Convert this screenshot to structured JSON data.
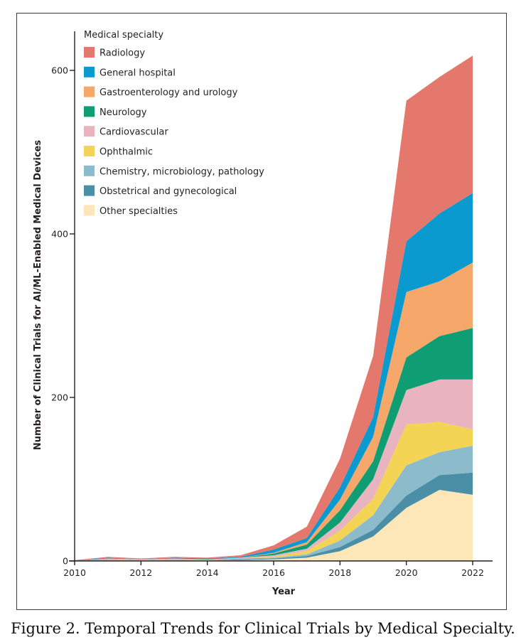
{
  "chart_data": {
    "type": "area",
    "stacked": true,
    "x": [
      2010,
      2011,
      2012,
      2013,
      2014,
      2015,
      2016,
      2017,
      2018,
      2019,
      2020,
      2021,
      2022
    ],
    "series": [
      {
        "name": "Other specialties",
        "color": "#fde6b8",
        "values": [
          0,
          1,
          1,
          1,
          1,
          1,
          2,
          4,
          12,
          30,
          65,
          87,
          81
        ]
      },
      {
        "name": "Obstetrical and gynecological",
        "color": "#4a8fa6",
        "values": [
          0,
          0,
          0,
          0,
          0,
          1,
          1,
          2,
          5,
          8,
          15,
          18,
          27
        ]
      },
      {
        "name": "Chemistry, microbiology, pathology",
        "color": "#8cbccc",
        "values": [
          0,
          1,
          0,
          1,
          0,
          1,
          1,
          2,
          8,
          18,
          37,
          28,
          33
        ]
      },
      {
        "name": "Ophthalmic",
        "color": "#f3d454",
        "values": [
          0,
          0,
          0,
          0,
          0,
          0,
          1,
          4,
          12,
          20,
          50,
          37,
          20
        ]
      },
      {
        "name": "Cardiovascular",
        "color": "#e8b4c0",
        "values": [
          0,
          1,
          1,
          1,
          1,
          1,
          2,
          3,
          10,
          24,
          42,
          52,
          61
        ]
      },
      {
        "name": "Neurology",
        "color": "#0f9e73",
        "values": [
          0,
          0,
          0,
          0,
          1,
          0,
          2,
          5,
          15,
          22,
          40,
          53,
          63
        ]
      },
      {
        "name": "Gastroenterology and urology",
        "color": "#f6a86b",
        "values": [
          0,
          0,
          0,
          0,
          0,
          0,
          1,
          3,
          13,
          30,
          80,
          67,
          80
        ]
      },
      {
        "name": "General hospital",
        "color": "#0b9ad0",
        "values": [
          0,
          1,
          0,
          1,
          0,
          1,
          4,
          5,
          15,
          24,
          62,
          83,
          85
        ]
      },
      {
        "name": "Radiology",
        "color": "#e5786c",
        "values": [
          1,
          1,
          1,
          1,
          1,
          2,
          5,
          14,
          35,
          75,
          172,
          167,
          168
        ]
      }
    ],
    "legend_title": "Medical specialty",
    "legend_order": [
      "Radiology",
      "General hospital",
      "Gastroenterology and urology",
      "Neurology",
      "Cardiovascular",
      "Ophthalmic",
      "Chemistry, microbiology, pathology",
      "Obstetrical and gynecological",
      "Other specialties"
    ],
    "legend_position": "top-left",
    "xlabel": "Year",
    "ylabel": "Number of Clinical Trials for AI/ML-Enabled Medical Devices",
    "xlim": [
      2010,
      2022
    ],
    "ylim": [
      0,
      650
    ],
    "x_ticks": [
      2010,
      2012,
      2014,
      2016,
      2018,
      2020,
      2022
    ],
    "y_ticks": [
      0,
      200,
      400,
      600
    ],
    "grid": false
  },
  "caption": "Figure 2. Temporal Trends for Clinical Trials by Medical Specialty."
}
